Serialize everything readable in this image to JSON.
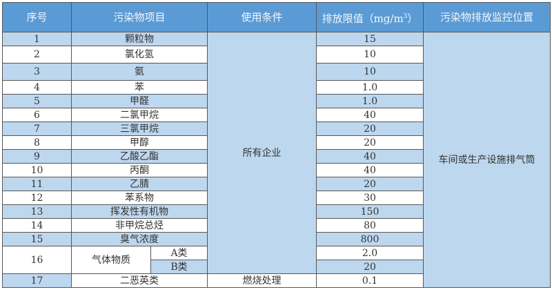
{
  "header": {
    "col_no": "序号",
    "col_item": "污染物项目",
    "col_condition": "使用条件",
    "col_limit": "排放限值（mg/m",
    "col_limit_sup": "3",
    "col_limit_end": "）",
    "col_location": "污染物排放监控位置"
  },
  "condition_all": "所有企业",
  "location": "车间或生产设施排气筒",
  "rows": [
    {
      "no": "1",
      "item": "颗粒物",
      "limit": "15"
    },
    {
      "no": "2",
      "item": "氯化氢",
      "limit": "10"
    },
    {
      "no": "3",
      "item": "氨",
      "limit": "10"
    },
    {
      "no": "4",
      "item": "苯",
      "limit": "1.0"
    },
    {
      "no": "5",
      "item": "甲醛",
      "limit": "1.0"
    },
    {
      "no": "6",
      "item": "二氯甲烷",
      "limit": "40"
    },
    {
      "no": "7",
      "item": "三氯甲烷",
      "limit": "20"
    },
    {
      "no": "8",
      "item": "甲醇",
      "limit": "20"
    },
    {
      "no": "9",
      "item": "乙酸乙酯",
      "limit": "40"
    },
    {
      "no": "10",
      "item": "丙酮",
      "limit": "40"
    },
    {
      "no": "11",
      "item": "乙腈",
      "limit": "20"
    },
    {
      "no": "12",
      "item": "苯系物",
      "limit": "30"
    },
    {
      "no": "13",
      "item": "挥发性有机物",
      "limit": "150"
    },
    {
      "no": "14",
      "item": "非甲烷总烃",
      "limit": "80"
    },
    {
      "no": "15",
      "item": "臭气浓度",
      "limit": "800"
    }
  ],
  "row16": {
    "no": "16",
    "item": "气体物质",
    "sub_a": "A类",
    "limit_a": "2.0",
    "sub_b": "B类",
    "limit_b": "20"
  },
  "row17": {
    "no": "17",
    "item": "二恶英类",
    "condition": "燃烧处理",
    "limit": "0.1"
  }
}
